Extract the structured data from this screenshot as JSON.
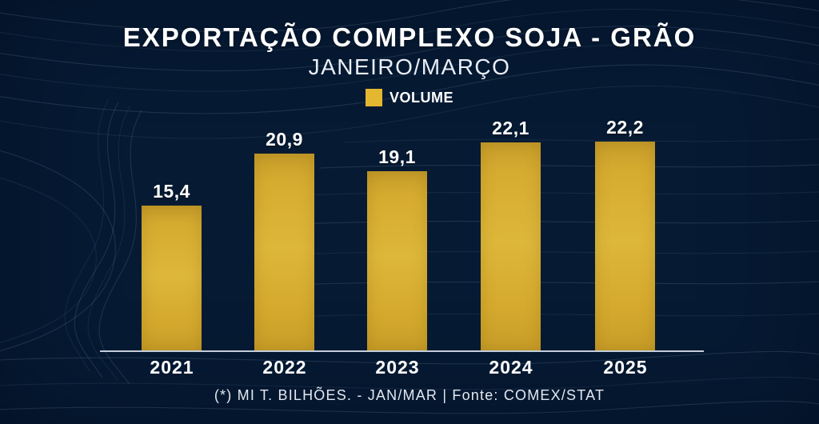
{
  "header": {
    "title": "EXPORTAÇÃO COMPLEXO SOJA - GRÃO",
    "subtitle": "JANEIRO/MARÇO"
  },
  "legend": {
    "label": "VOLUME",
    "swatch_color": "#e3b72f"
  },
  "chart_data": {
    "type": "bar",
    "title": "EXPORTAÇÃO COMPLEXO SOJA - GRÃO",
    "subtitle": "JANEIRO/MARÇO",
    "series_name": "VOLUME",
    "categories": [
      "2021",
      "2022",
      "2023",
      "2024",
      "2025"
    ],
    "values": [
      15.4,
      20.9,
      19.1,
      22.1,
      22.2
    ],
    "value_labels": [
      "15,4",
      "20,9",
      "19,1",
      "22,1",
      "22,2"
    ],
    "unit_note": "(*) MI T. BILHÕES. - JAN/MAR",
    "source": "Fonte: COMEX/STAT",
    "bar_color": "#d9b034",
    "background_color": "#11315b",
    "text_color": "#ffffff",
    "axis_color": "#ccd8e5",
    "grid": false,
    "legend_position": "top",
    "ylim": [
      0,
      24
    ]
  },
  "footer": {
    "note": "(*) MI T. BILHÕES. - JAN/MAR | Fonte: COMEX/STAT"
  }
}
